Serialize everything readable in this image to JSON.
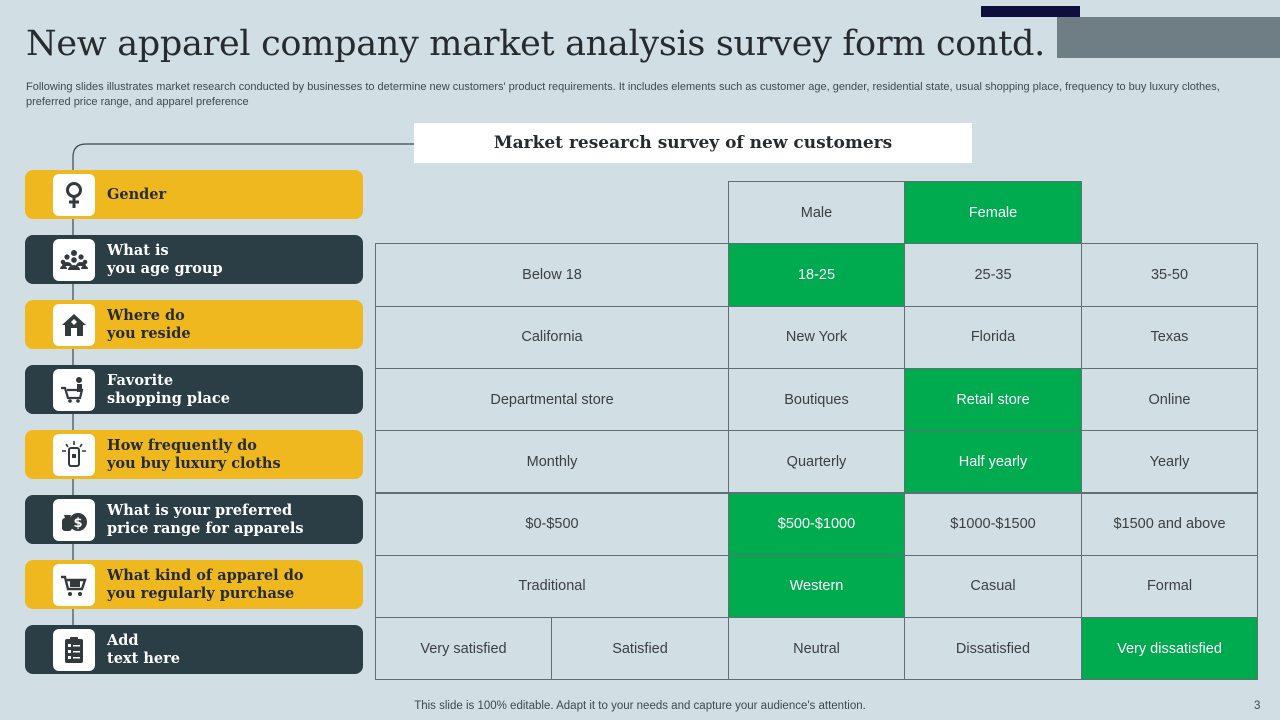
{
  "title": "New apparel company market analysis survey form contd.",
  "subtitle": "Following slides illustrates market research conducted by businesses to determine new customers' product requirements. It includes elements such as customer age, gender, residential state, usual shopping place, frequency to buy luxury clothes, preferred price range, and apparel preference",
  "survey_title": "Market research survey of new customers",
  "colors": {
    "yellow": "#efb81f",
    "dark": "#2b3e45",
    "selected": "#00aa4f",
    "background": "#d1dee3"
  },
  "questions": [
    {
      "label": "Gender",
      "icon": "gender-female-icon",
      "style": "yellow"
    },
    {
      "label": "What is\nyou age group",
      "icon": "people-group-icon",
      "style": "dark"
    },
    {
      "label": "Where do\nyou reside",
      "icon": "home-icon",
      "style": "yellow"
    },
    {
      "label": "Favorite\nshopping place",
      "icon": "shopping-cart-person-icon",
      "style": "dark"
    },
    {
      "label": "How frequently do\nyou buy luxury cloths",
      "icon": "mobile-shopping-icon",
      "style": "yellow"
    },
    {
      "label": "What is your preferred\nprice range for apparels",
      "icon": "money-bag-icon",
      "style": "dark"
    },
    {
      "label": "What kind of apparel do\nyou regularly purchase",
      "icon": "shopping-cart-icon",
      "style": "yellow"
    },
    {
      "label": "Add\ntext here",
      "icon": "clipboard-checklist-icon",
      "style": "dark"
    }
  ],
  "rows": [
    {
      "options": [
        "Male",
        "Female"
      ],
      "selected": 1
    },
    {
      "options": [
        "Below 18",
        "18-25",
        "25-35",
        "35-50"
      ],
      "selected": 1
    },
    {
      "options": [
        "California",
        "New York",
        "Florida",
        "Texas"
      ],
      "selected": -1
    },
    {
      "options": [
        "Departmental store",
        "Boutiques",
        "Retail store",
        "Online"
      ],
      "selected": 2
    },
    {
      "options": [
        "Monthly",
        "Quarterly",
        "Half yearly",
        "Yearly"
      ],
      "selected": 2
    },
    {
      "options": [
        "$0-$500",
        "$500-$1000",
        "$1000-$1500",
        "$1500 and above"
      ],
      "selected": 1
    },
    {
      "options": [
        "Traditional",
        "Western",
        "Casual",
        "Formal"
      ],
      "selected": 1
    },
    {
      "options": [
        "Very satisfied",
        "Satisfied",
        "Neutral",
        "Dissatisfied",
        "Very dissatisfied"
      ],
      "selected": 4
    }
  ],
  "footer": "This slide is 100% editable. Adapt it to your needs and capture your audience's attention.",
  "page_number": "3"
}
